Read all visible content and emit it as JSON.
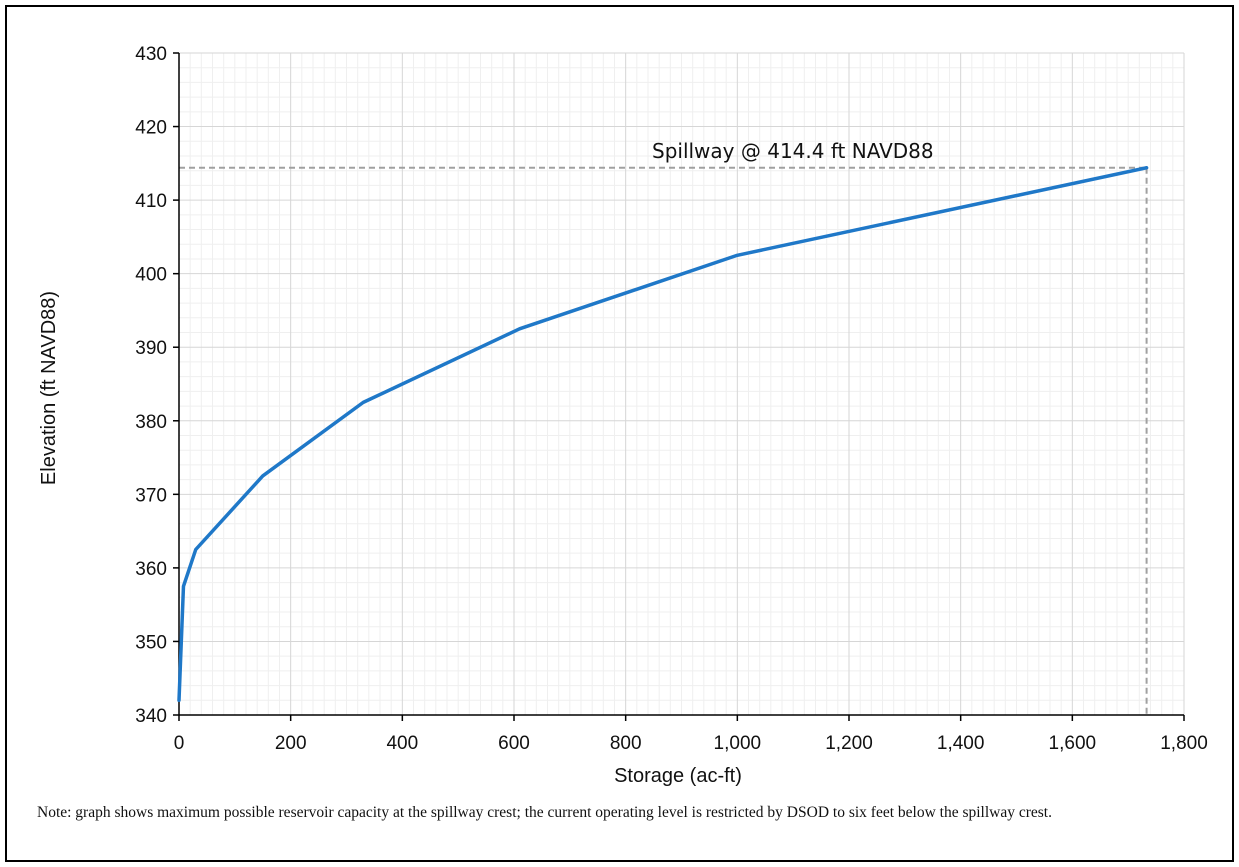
{
  "chart_data": {
    "type": "line",
    "title": "",
    "xlabel": "Storage (ac-ft)",
    "ylabel": "Elevation (ft NAVD88)",
    "xlim": [
      0,
      1800
    ],
    "ylim": [
      340,
      430
    ],
    "x_ticks": [
      "0",
      "200",
      "400",
      "600",
      "800",
      "1,000",
      "1,200",
      "1,400",
      "1,600",
      "1,800"
    ],
    "y_ticks": [
      "340",
      "350",
      "360",
      "370",
      "380",
      "390",
      "400",
      "410",
      "420",
      "430"
    ],
    "grid": true,
    "series": [
      {
        "color": "#1f78c8",
        "x": [
          0,
          8,
          30,
          150,
          330,
          610,
          1000,
          1733
        ],
        "y": [
          342,
          357.5,
          362.5,
          372.5,
          382.5,
          392.5,
          402.5,
          414.4
        ]
      }
    ],
    "reference_lines": {
      "label": "Spillway @ 414.4 ft NAVD88",
      "y": 414.4,
      "x": 1733,
      "color": "#a0a0a0"
    }
  },
  "note": "Note: graph shows maximum possible reservoir capacity at the spillway crest; the current operating level is restricted by DSOD to six feet below the spillway crest."
}
